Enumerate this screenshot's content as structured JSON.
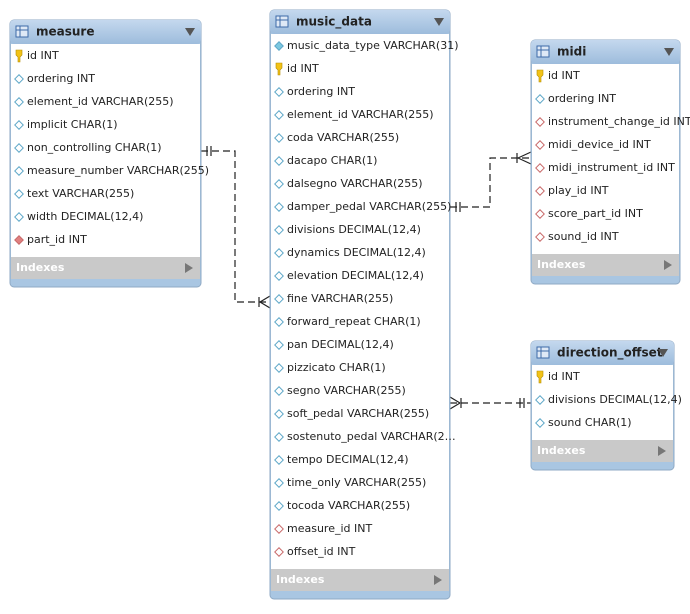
{
  "tables": [
    {
      "name": "measure",
      "indexes": "Indexes",
      "columns": [
        {
          "text": "id INT",
          "icon": "pk"
        },
        {
          "text": "ordering INT",
          "icon": "col"
        },
        {
          "text": "element_id VARCHAR(255)",
          "icon": "col"
        },
        {
          "text": "implicit CHAR(1)",
          "icon": "col"
        },
        {
          "text": "non_controlling CHAR(1)",
          "icon": "col"
        },
        {
          "text": "measure_number VARCHAR(255)",
          "icon": "col"
        },
        {
          "text": "text VARCHAR(255)",
          "icon": "col"
        },
        {
          "text": "width DECIMAL(12,4)",
          "icon": "col"
        },
        {
          "text": "part_id INT",
          "icon": "fk-filled"
        }
      ]
    },
    {
      "name": "music_data",
      "indexes": "Indexes",
      "columns": [
        {
          "text": "music_data_type VARCHAR(31)",
          "icon": "col-filled"
        },
        {
          "text": "id INT",
          "icon": "pk"
        },
        {
          "text": "ordering INT",
          "icon": "col"
        },
        {
          "text": "element_id VARCHAR(255)",
          "icon": "col"
        },
        {
          "text": "coda VARCHAR(255)",
          "icon": "col"
        },
        {
          "text": "dacapo CHAR(1)",
          "icon": "col"
        },
        {
          "text": "dalsegno VARCHAR(255)",
          "icon": "col"
        },
        {
          "text": "damper_pedal VARCHAR(255)",
          "icon": "col"
        },
        {
          "text": "divisions DECIMAL(12,4)",
          "icon": "col"
        },
        {
          "text": "dynamics DECIMAL(12,4)",
          "icon": "col"
        },
        {
          "text": "elevation DECIMAL(12,4)",
          "icon": "col"
        },
        {
          "text": "fine VARCHAR(255)",
          "icon": "col"
        },
        {
          "text": "forward_repeat CHAR(1)",
          "icon": "col"
        },
        {
          "text": "pan DECIMAL(12,4)",
          "icon": "col"
        },
        {
          "text": "pizzicato CHAR(1)",
          "icon": "col"
        },
        {
          "text": "segno VARCHAR(255)",
          "icon": "col"
        },
        {
          "text": "soft_pedal VARCHAR(255)",
          "icon": "col"
        },
        {
          "text": "sostenuto_pedal VARCHAR(2…",
          "icon": "col"
        },
        {
          "text": "tempo DECIMAL(12,4)",
          "icon": "col"
        },
        {
          "text": "time_only VARCHAR(255)",
          "icon": "col"
        },
        {
          "text": "tocoda VARCHAR(255)",
          "icon": "col"
        },
        {
          "text": "measure_id INT",
          "icon": "fk"
        },
        {
          "text": "offset_id INT",
          "icon": "fk"
        }
      ]
    },
    {
      "name": "midi",
      "indexes": "Indexes",
      "columns": [
        {
          "text": "id INT",
          "icon": "pk"
        },
        {
          "text": "ordering INT",
          "icon": "col"
        },
        {
          "text": "instrument_change_id INT",
          "icon": "fk"
        },
        {
          "text": "midi_device_id INT",
          "icon": "fk"
        },
        {
          "text": "midi_instrument_id INT",
          "icon": "fk"
        },
        {
          "text": "play_id INT",
          "icon": "fk"
        },
        {
          "text": "score_part_id INT",
          "icon": "fk"
        },
        {
          "text": "sound_id INT",
          "icon": "fk"
        }
      ]
    },
    {
      "name": "direction_offset",
      "indexes": "Indexes",
      "columns": [
        {
          "text": "id INT",
          "icon": "pk"
        },
        {
          "text": "divisions DECIMAL(12,4)",
          "icon": "col"
        },
        {
          "text": "sound CHAR(1)",
          "icon": "col"
        }
      ]
    }
  ]
}
